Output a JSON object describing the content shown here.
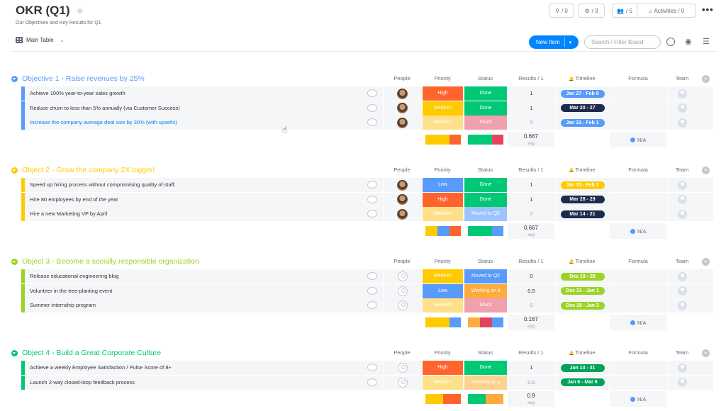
{
  "board": {
    "title": "OKR (Q1)",
    "subtitle": "Our Objectives and Key Results for Q1",
    "view_label": "Main Table",
    "new_item_label": "New Item",
    "search_placeholder": "Search / Filter Board",
    "btn_integrations": "/ 0",
    "btn_automations": "/ 3",
    "btn_members": "/ 5",
    "btn_activities": "Activities / 0"
  },
  "columns": {
    "people": "People",
    "priority": "Priority",
    "status": "Status",
    "results": "Results / 1",
    "timeline": "Timeline",
    "formula": "Formula",
    "team": "Team"
  },
  "colors": {
    "high": "#e2445c",
    "high_orange": "#ff642e",
    "medium": "#fdab3d",
    "medium_light": "#ffcb00",
    "low": "#579bfc",
    "done": "#00c875",
    "stuck": "#e2445c",
    "moved": "#579bfc",
    "working": "#fdab3d",
    "blue": "#579bfc",
    "dark": "#1f2b4d",
    "orange": "#fdab3d",
    "lime": "#9cd326",
    "green": "#00c875",
    "purple": "#a25ddc"
  },
  "groups": [
    {
      "title": "Objective 1 - Raise revenues by 25%",
      "color": "#579bfc",
      "avg": "0.667",
      "avg_label": "avg",
      "formula_summary": "N/A",
      "items": [
        {
          "name": "Achieve 100% year-to-year sales growth",
          "priority": "High",
          "pcolor": "#ff642e",
          "status": "Done",
          "scolor": "#00c875",
          "result": "1",
          "timeline": "Jan 27 - Feb 8",
          "tcolor": "#579bfc",
          "avatar": true,
          "link": false,
          "dim": false
        },
        {
          "name": "Reduce churn to less than 5% annually (via Customer Success)",
          "priority": "Medium",
          "pcolor": "#ffcb00",
          "status": "Done",
          "scolor": "#00c875",
          "result": "1",
          "timeline": "Mar 20 - 27",
          "tcolor": "#1f2b4d",
          "avatar": true,
          "link": false,
          "dim": false
        },
        {
          "name": "Increase the company average deal size by 30% (with upsells)",
          "priority": "Medium",
          "pcolor": "#ffe08a",
          "status": "Stuck",
          "scolor": "#f1a0ad",
          "result": "0",
          "timeline": "Jan 31 - Feb 1",
          "tcolor": "#579bfc",
          "avatar": true,
          "link": true,
          "dim": true
        }
      ],
      "pri_summary": [
        {
          "c": "#ffcb00",
          "w": 34
        },
        {
          "c": "#ff642e",
          "w": 16
        }
      ],
      "sta_summary": [
        {
          "c": "#00c875",
          "w": 34
        },
        {
          "c": "#e2445c",
          "w": 16
        }
      ]
    },
    {
      "title": "Object 2 - Grow the company 2X bigger!",
      "color": "#ffcb00",
      "avg": "0.667",
      "avg_label": "avg",
      "formula_summary": "N/A",
      "items": [
        {
          "name": "Speed up hiring process without compromising quality of staff.",
          "priority": "Low",
          "pcolor": "#579bfc",
          "status": "Done",
          "scolor": "#00c875",
          "result": "1",
          "timeline": "Jan 31 - Feb 1",
          "tcolor": "#ffcb00",
          "avatar": true,
          "link": false,
          "dim": false
        },
        {
          "name": "Hire 80 employees by end of the year",
          "priority": "High",
          "pcolor": "#ff642e",
          "status": "Done",
          "scolor": "#00c875",
          "result": "1",
          "timeline": "Mar 28 - 29",
          "tcolor": "#1f2b4d",
          "avatar": true,
          "link": false,
          "dim": false
        },
        {
          "name": "Hire a new Marketing VP by April",
          "priority": "Medium",
          "pcolor": "#ffe08a",
          "status": "Moved to Q2",
          "scolor": "#9cc3fd",
          "result": "0",
          "timeline": "Mar 14 - 21",
          "tcolor": "#1f2b4d",
          "avatar": true,
          "link": false,
          "dim": true
        }
      ],
      "pri_summary": [
        {
          "c": "#ffcb00",
          "w": 17
        },
        {
          "c": "#579bfc",
          "w": 17
        },
        {
          "c": "#ff642e",
          "w": 16
        }
      ],
      "sta_summary": [
        {
          "c": "#00c875",
          "w": 34
        },
        {
          "c": "#579bfc",
          "w": 16
        }
      ]
    },
    {
      "title": "Object 3 - Become a socially responsible organization",
      "color": "#9cd326",
      "avg": "0.167",
      "avg_label": "avg",
      "formula_summary": "N/A",
      "items": [
        {
          "name": "Release educational engineering blog",
          "priority": "Medium",
          "pcolor": "#ffcb00",
          "status": "Moved to Q2",
          "scolor": "#579bfc",
          "result": "0",
          "timeline": "Dec 19 - 29",
          "tcolor": "#9cd326",
          "avatar": false,
          "link": false,
          "dim": false
        },
        {
          "name": "Volunteer in the tree-planting event",
          "priority": "Low",
          "pcolor": "#579bfc",
          "status": "Working on it",
          "scolor": "#fdab3d",
          "result": "0.5",
          "timeline": "Dec 31 - Jan 1",
          "tcolor": "#9cd326",
          "avatar": false,
          "link": false,
          "dim": false
        },
        {
          "name": "Summer internship program",
          "priority": "Medium",
          "pcolor": "#ffe08a",
          "status": "Stuck",
          "scolor": "#f1a0ad",
          "result": "0",
          "timeline": "Dec 19 - Jan 3",
          "tcolor": "#9cd326",
          "avatar": false,
          "link": false,
          "dim": true
        }
      ],
      "pri_summary": [
        {
          "c": "#ffcb00",
          "w": 34
        },
        {
          "c": "#579bfc",
          "w": 16
        }
      ],
      "sta_summary": [
        {
          "c": "#fdab3d",
          "w": 17
        },
        {
          "c": "#e2445c",
          "w": 17
        },
        {
          "c": "#579bfc",
          "w": 16
        }
      ]
    },
    {
      "title": "Object 4 - Build a Great Corporate Culture",
      "color": "#00c875",
      "avg": "0.9",
      "avg_label": "avg",
      "formula_summary": "N/A",
      "items": [
        {
          "name": "Achieve a weekly Employee Satisfaction / Pulse Score of 8+",
          "priority": "High",
          "pcolor": "#ff642e",
          "status": "Done",
          "scolor": "#00c875",
          "result": "1",
          "timeline": "Jan 13 - 31",
          "tcolor": "#00a359",
          "avatar": false,
          "link": false,
          "dim": false
        },
        {
          "name": "Launch 2-way closed-loop feedback process",
          "priority": "Medium",
          "pcolor": "#ffe08a",
          "status": "Working on it",
          "scolor": "#fdd28f",
          "result": "0.8",
          "timeline": "Jan 6 - Mar 6",
          "tcolor": "#00a359",
          "avatar": false,
          "link": false,
          "dim": true
        }
      ],
      "pri_summary": [
        {
          "c": "#ffcb00",
          "w": 25
        },
        {
          "c": "#ff642e",
          "w": 25
        }
      ],
      "sta_summary": [
        {
          "c": "#00c875",
          "w": 25
        },
        {
          "c": "#fdab3d",
          "w": 25
        }
      ]
    }
  ]
}
